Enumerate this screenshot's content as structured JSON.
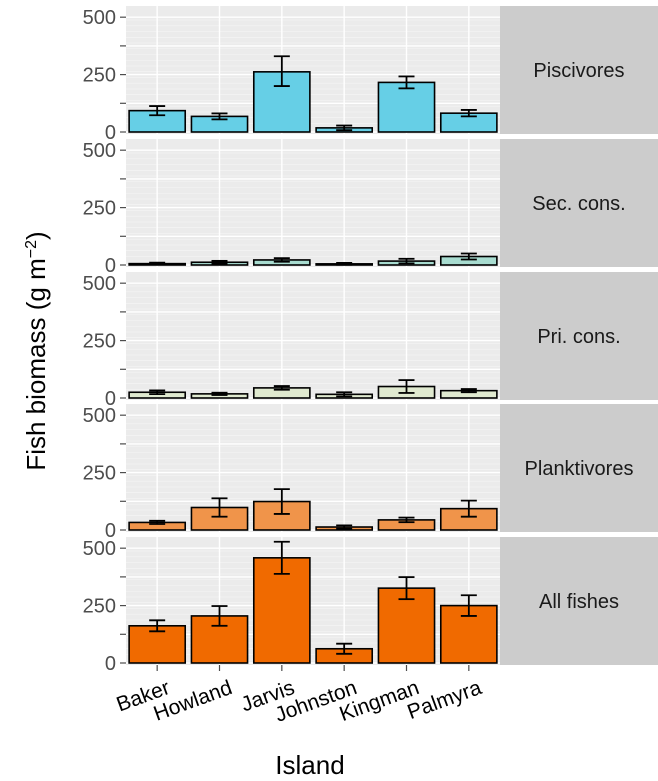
{
  "chart_data": {
    "type": "bar",
    "xlabel": "Island",
    "ylabel": "Fish biomass (g m",
    "ylabel_exponent": "−2",
    "ylabel_close": ")",
    "categories": [
      "Baker",
      "Howland",
      "Jarvis",
      "Johnston",
      "Kingman",
      "Palmyra"
    ],
    "ylim": [
      0,
      540
    ],
    "yticks": [
      "0",
      "250",
      "500"
    ],
    "grid": true,
    "facets": [
      {
        "label": "Piscivores",
        "color": "#66cfe6",
        "values": [
          93,
          68,
          262,
          18,
          216,
          82
        ],
        "error": [
          [
            73,
            113
          ],
          [
            55,
            81
          ],
          [
            200,
            330
          ],
          [
            8,
            28
          ],
          [
            190,
            242
          ],
          [
            68,
            96
          ]
        ]
      },
      {
        "label": "Sec. cons.",
        "color": "#a8dcd0",
        "values": [
          6,
          12,
          22,
          5,
          17,
          37
        ],
        "error": [
          [
            2,
            10
          ],
          [
            6,
            18
          ],
          [
            14,
            30
          ],
          [
            1,
            9
          ],
          [
            7,
            27
          ],
          [
            24,
            50
          ]
        ]
      },
      {
        "label": "Pri. cons.",
        "color": "#dfe9cf",
        "values": [
          25,
          18,
          44,
          16,
          50,
          32
        ],
        "error": [
          [
            17,
            33
          ],
          [
            13,
            23
          ],
          [
            36,
            52
          ],
          [
            7,
            25
          ],
          [
            22,
            78
          ],
          [
            25,
            39
          ]
        ]
      },
      {
        "label": "Planktivores",
        "color": "#f0944a",
        "values": [
          33,
          98,
          124,
          13,
          44,
          93
        ],
        "error": [
          [
            26,
            40
          ],
          [
            58,
            138
          ],
          [
            70,
            178
          ],
          [
            6,
            20
          ],
          [
            34,
            54
          ],
          [
            58,
            128
          ]
        ]
      },
      {
        "label": "All fishes",
        "color": "#f06a00",
        "values": [
          162,
          205,
          458,
          62,
          326,
          250
        ],
        "error": [
          [
            138,
            186
          ],
          [
            162,
            248
          ],
          [
            388,
            528
          ],
          [
            40,
            84
          ],
          [
            278,
            374
          ],
          [
            205,
            295
          ]
        ]
      }
    ]
  }
}
